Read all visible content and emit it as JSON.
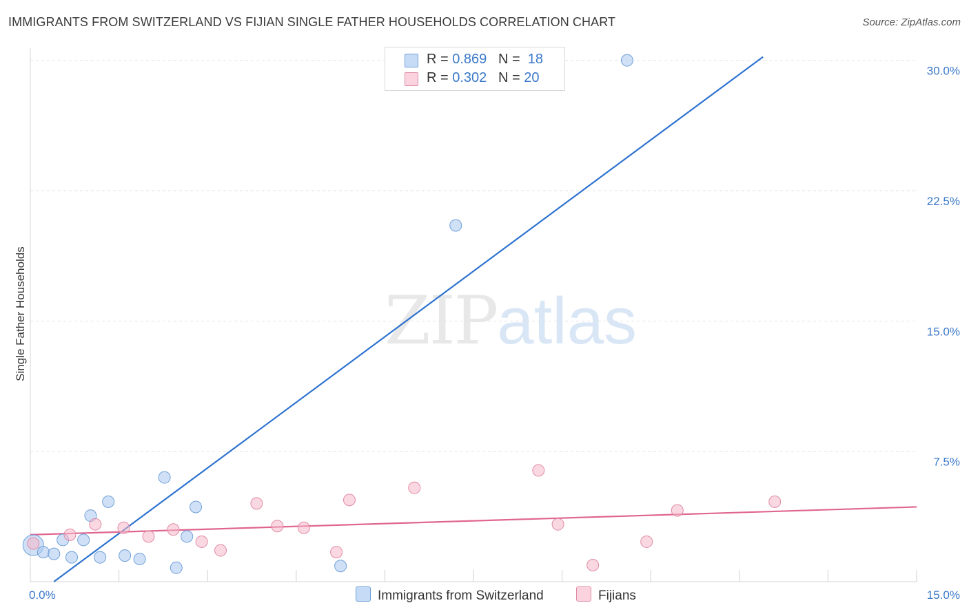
{
  "title": "IMMIGRANTS FROM SWITZERLAND VS FIJIAN SINGLE FATHER HOUSEHOLDS CORRELATION CHART",
  "source": "Source: ZipAtlas.com",
  "watermark": {
    "zip": "ZIP",
    "atlas": "atlas"
  },
  "legend_top": [
    {
      "r_label": "R =",
      "r_value": "0.869",
      "n_label": "N =",
      "n_value": "18",
      "color": "#a9c8f0"
    },
    {
      "r_label": "R =",
      "r_value": "0.302",
      "n_label": "N =",
      "n_value": "20",
      "color": "#f6b8cb"
    }
  ],
  "chart_data": {
    "type": "scatter",
    "title": "IMMIGRANTS FROM SWITZERLAND VS FIJIAN SINGLE FATHER HOUSEHOLDS CORRELATION CHART",
    "xlabel": "",
    "ylabel": "Single Father Households",
    "xlim": [
      0,
      15
    ],
    "ylim": [
      0,
      30.7
    ],
    "x_tick_labels": [
      {
        "value": 0,
        "label": "0.0%"
      },
      {
        "value": 15,
        "label": "15.0%"
      }
    ],
    "y_tick_labels": [
      {
        "value": 7.5,
        "label": "7.5%"
      },
      {
        "value": 15,
        "label": "15.0%"
      },
      {
        "value": 22.5,
        "label": "22.5%"
      },
      {
        "value": 30,
        "label": "30.0%"
      }
    ],
    "series": [
      {
        "name": "Immigrants from Switzerland",
        "color": "#a9c8f0",
        "stroke": "#6f9fd8",
        "line_color": "#2d72cf",
        "points": [
          {
            "x": 0.05,
            "y": 2.1,
            "big": true
          },
          {
            "x": 0.22,
            "y": 1.7
          },
          {
            "x": 0.4,
            "y": 1.6
          },
          {
            "x": 0.55,
            "y": 2.4
          },
          {
            "x": 0.7,
            "y": 1.4
          },
          {
            "x": 0.9,
            "y": 2.4
          },
          {
            "x": 1.02,
            "y": 3.8
          },
          {
            "x": 1.18,
            "y": 1.4
          },
          {
            "x": 1.32,
            "y": 4.6
          },
          {
            "x": 1.6,
            "y": 1.5
          },
          {
            "x": 1.85,
            "y": 1.3
          },
          {
            "x": 2.27,
            "y": 6.0
          },
          {
            "x": 2.47,
            "y": 0.8
          },
          {
            "x": 2.65,
            "y": 2.6
          },
          {
            "x": 2.8,
            "y": 4.3
          },
          {
            "x": 5.25,
            "y": 0.9
          },
          {
            "x": 7.2,
            "y": 20.5
          },
          {
            "x": 10.1,
            "y": 30.0
          }
        ],
        "trend": {
          "x0": 0.4,
          "y0": 0.0,
          "x1": 12.4,
          "y1": 30.2
        }
      },
      {
        "name": "Fijians",
        "color": "#f6b8cb",
        "stroke": "#e08aa6",
        "line_color": "#e0658f",
        "points": [
          {
            "x": 0.05,
            "y": 2.2
          },
          {
            "x": 0.67,
            "y": 2.7
          },
          {
            "x": 1.1,
            "y": 3.3
          },
          {
            "x": 1.58,
            "y": 3.1
          },
          {
            "x": 2.0,
            "y": 2.6
          },
          {
            "x": 2.42,
            "y": 3.0
          },
          {
            "x": 2.9,
            "y": 2.3
          },
          {
            "x": 3.22,
            "y": 1.8
          },
          {
            "x": 3.83,
            "y": 4.5
          },
          {
            "x": 4.18,
            "y": 3.2
          },
          {
            "x": 4.63,
            "y": 3.1
          },
          {
            "x": 5.18,
            "y": 1.7
          },
          {
            "x": 5.4,
            "y": 4.7
          },
          {
            "x": 6.5,
            "y": 5.4
          },
          {
            "x": 8.6,
            "y": 6.4
          },
          {
            "x": 8.93,
            "y": 3.3
          },
          {
            "x": 9.52,
            "y": 0.95
          },
          {
            "x": 10.43,
            "y": 2.3
          },
          {
            "x": 10.95,
            "y": 4.1
          },
          {
            "x": 12.6,
            "y": 4.6
          }
        ],
        "trend": {
          "x0": 0.0,
          "y0": 2.7,
          "x1": 15.0,
          "y1": 4.3
        }
      }
    ]
  }
}
